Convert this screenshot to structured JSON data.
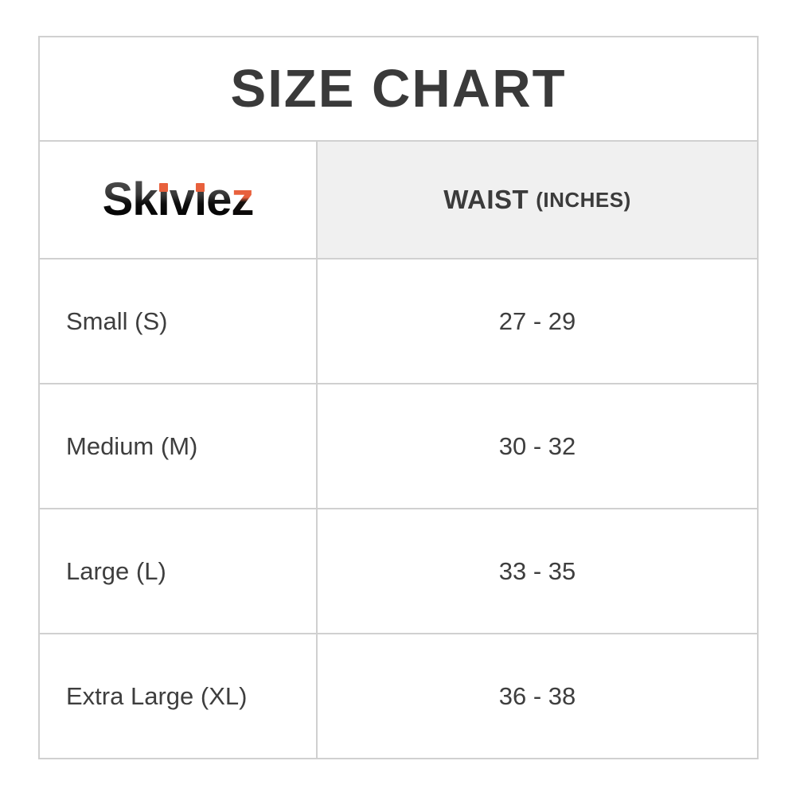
{
  "title": "SIZE CHART",
  "header": {
    "brand": "Skiviez",
    "waist_label": "WAIST",
    "waist_unit": "(INCHES)"
  },
  "rows": [
    {
      "size": "Small (S)",
      "waist": "27 - 29"
    },
    {
      "size": "Medium (M)",
      "waist": "30 - 32"
    },
    {
      "size": "Large (L)",
      "waist": "33 - 35"
    },
    {
      "size": "Extra Large (XL)",
      "waist": "36 - 38"
    }
  ],
  "colors": {
    "border": "#d0d0d0",
    "header_cell_bg": "#f0f0f0",
    "text": "#3e3e3e",
    "title_text": "#3a3a3a",
    "logo_dark": "#000000",
    "logo_accent_orange": "#e8603c"
  },
  "chart_data": {
    "type": "table",
    "title": "SIZE CHART",
    "columns": [
      "Skiviez",
      "WAIST (INCHES)"
    ],
    "rows": [
      [
        "Small (S)",
        "27 - 29"
      ],
      [
        "Medium (M)",
        "30 - 32"
      ],
      [
        "Large (L)",
        "33 - 35"
      ],
      [
        "Extra Large (XL)",
        "36 - 38"
      ]
    ],
    "waist_ranges_inches": [
      {
        "size": "S",
        "min": 27,
        "max": 29
      },
      {
        "size": "M",
        "min": 30,
        "max": 32
      },
      {
        "size": "L",
        "min": 33,
        "max": 35
      },
      {
        "size": "XL",
        "min": 36,
        "max": 38
      }
    ]
  }
}
